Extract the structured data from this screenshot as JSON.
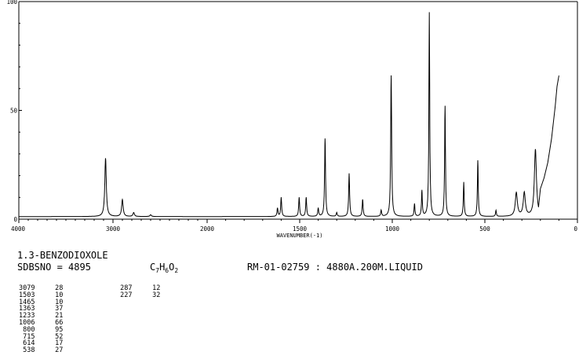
{
  "chart_data": {
    "type": "line",
    "xlabel": "WAVENUMBER(-1)",
    "ylabel": "",
    "xlim": [
      4000,
      0
    ],
    "ylim": [
      0,
      100
    ],
    "x_ticks": [
      "4000",
      "3000",
      "2000",
      "1500",
      "1000",
      "500",
      "0"
    ],
    "y_ticks": [
      "100",
      "50",
      "0"
    ],
    "series": [
      {
        "peaks": [
          {
            "x": 3079,
            "y": 28
          },
          {
            "x": 2900,
            "y": 9
          },
          {
            "x": 2780,
            "y": 3
          },
          {
            "x": 2600,
            "y": 2
          },
          {
            "x": 1620,
            "y": 5
          },
          {
            "x": 1600,
            "y": 10
          },
          {
            "x": 1503,
            "y": 10
          },
          {
            "x": 1465,
            "y": 10
          },
          {
            "x": 1400,
            "y": 5
          },
          {
            "x": 1363,
            "y": 37
          },
          {
            "x": 1300,
            "y": 3
          },
          {
            "x": 1233,
            "y": 21
          },
          {
            "x": 1160,
            "y": 9
          },
          {
            "x": 1060,
            "y": 4
          },
          {
            "x": 1006,
            "y": 66
          },
          {
            "x": 880,
            "y": 7
          },
          {
            "x": 840,
            "y": 13
          },
          {
            "x": 800,
            "y": 95
          },
          {
            "x": 715,
            "y": 52
          },
          {
            "x": 614,
            "y": 17
          },
          {
            "x": 538,
            "y": 27
          },
          {
            "x": 440,
            "y": 4
          },
          {
            "x": 330,
            "y": 12
          },
          {
            "x": 287,
            "y": 12
          },
          {
            "x": 227,
            "y": 32
          }
        ],
        "rise": [
          {
            "x": 200,
            "y": 14
          },
          {
            "x": 180,
            "y": 19
          },
          {
            "x": 160,
            "y": 26
          },
          {
            "x": 140,
            "y": 37
          },
          {
            "x": 120,
            "y": 52
          },
          {
            "x": 110,
            "y": 61
          },
          {
            "x": 100,
            "y": 66
          }
        ]
      }
    ]
  },
  "info": {
    "compound": "1.3-BENZODIOXOLE",
    "sdbs_label": "SDBSNO = 4895",
    "formula": {
      "c": "C",
      "c_n": "7",
      "h": "H",
      "h_n": "6",
      "o": "O",
      "o_n": "2"
    },
    "method": "RM-01-02759 : 4880A.200M.LIQUID"
  },
  "peak_table": {
    "col1": [
      {
        "wavenumber": "3079",
        "intensity": "28"
      },
      {
        "wavenumber": "1503",
        "intensity": "10"
      },
      {
        "wavenumber": "1465",
        "intensity": "10"
      },
      {
        "wavenumber": "1363",
        "intensity": "37"
      },
      {
        "wavenumber": "1233",
        "intensity": "21"
      },
      {
        "wavenumber": "1006",
        "intensity": "66"
      },
      {
        "wavenumber": "800",
        "intensity": "95"
      },
      {
        "wavenumber": "715",
        "intensity": "52"
      },
      {
        "wavenumber": "614",
        "intensity": "17"
      },
      {
        "wavenumber": "538",
        "intensity": "27"
      }
    ],
    "col2": [
      {
        "wavenumber": "287",
        "intensity": "12"
      },
      {
        "wavenumber": "227",
        "intensity": "32"
      }
    ]
  }
}
